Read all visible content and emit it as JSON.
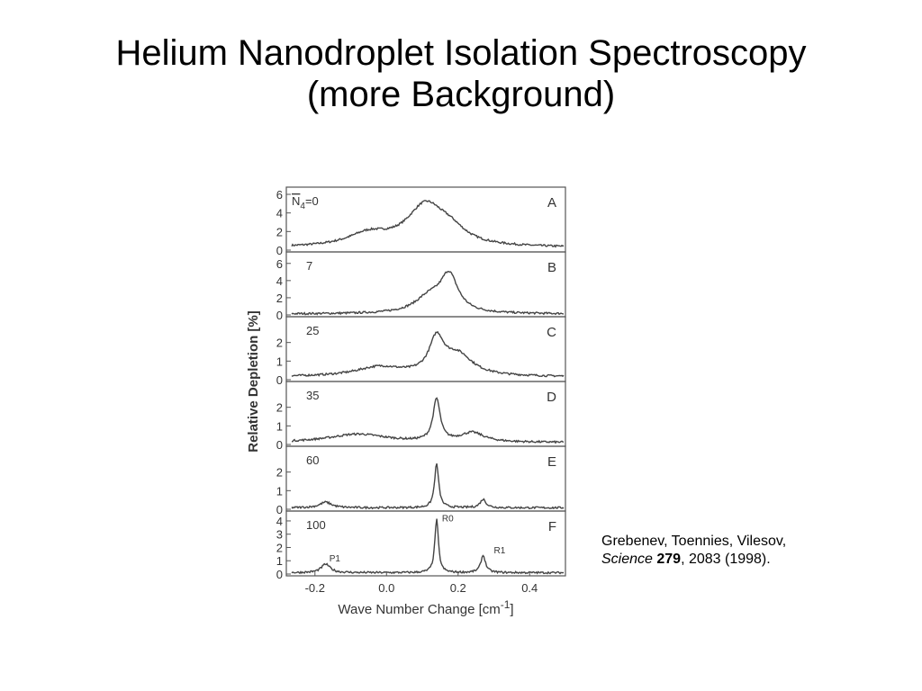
{
  "slide": {
    "title_line1": "Helium Nanodroplet Isolation Spectroscopy",
    "title_line2": "(more Background)"
  },
  "citation": {
    "authors": "Grebenev, Toennies, Vilesov,",
    "journal": "Science",
    "volume": "279",
    "rest": ", 2083 (1998)."
  },
  "chart_data": {
    "type": "line",
    "xlabel": "Wave Number Change [cm",
    "xlabel_exponent": "-1",
    "xlabel_close": "]",
    "ylabel": "Relative Depletion [%]",
    "xlim": [
      -0.28,
      0.5
    ],
    "xticks": [
      -0.2,
      0.0,
      0.2,
      0.4
    ],
    "xtick_labels": [
      "-0.2",
      "0.0",
      "0.2",
      "0.4"
    ],
    "grid": false,
    "panels": [
      {
        "letter": "A",
        "label": "N4=0",
        "n_label": "N",
        "n_sub": "4",
        "n_rest": "=0",
        "ylim": [
          0,
          6
        ],
        "yticks": [
          0,
          2,
          4,
          6
        ],
        "features": [
          [
            -0.05,
            1.3,
            0.07
          ],
          [
            0.11,
            4.4,
            0.065
          ],
          [
            0.18,
            1.2,
            0.05
          ]
        ],
        "base": 0.25
      },
      {
        "letter": "B",
        "label": "7",
        "ylim": [
          0,
          6.5
        ],
        "yticks": [
          0,
          2,
          4,
          6
        ],
        "features": [
          [
            0.12,
            1.8,
            0.05
          ],
          [
            0.175,
            4.2,
            0.03
          ]
        ],
        "base": 0.1
      },
      {
        "letter": "C",
        "label": "25",
        "ylim": [
          0,
          3
        ],
        "yticks": [
          0,
          1,
          2
        ],
        "features": [
          [
            -0.02,
            0.5,
            0.08
          ],
          [
            0.14,
            1.85,
            0.025
          ],
          [
            0.2,
            1.1,
            0.05
          ]
        ],
        "base": 0.15
      },
      {
        "letter": "D",
        "label": "35",
        "ylim": [
          0,
          3
        ],
        "yticks": [
          0,
          1,
          2
        ],
        "features": [
          [
            -0.08,
            0.45,
            0.1
          ],
          [
            0.14,
            2.25,
            0.012
          ],
          [
            0.24,
            0.5,
            0.04
          ]
        ],
        "base": 0.1
      },
      {
        "letter": "E",
        "label": "60",
        "ylim": [
          0,
          3
        ],
        "yticks": [
          0,
          1,
          2
        ],
        "features": [
          [
            -0.17,
            0.3,
            0.02
          ],
          [
            0.14,
            2.35,
            0.007
          ],
          [
            0.27,
            0.45,
            0.01
          ]
        ],
        "base": 0.08
      },
      {
        "letter": "F",
        "label": "100",
        "ylim": [
          0,
          4.2
        ],
        "yticks": [
          0,
          1,
          2,
          3,
          4
        ],
        "features": [
          [
            -0.17,
            0.65,
            0.015
          ],
          [
            0.14,
            4.0,
            0.006
          ],
          [
            0.27,
            1.3,
            0.008
          ]
        ],
        "base": 0.1,
        "annotations": [
          {
            "text": "P1",
            "x": -0.16,
            "y": 0.95
          },
          {
            "text": "R0",
            "x": 0.155,
            "y": 3.95
          },
          {
            "text": "R1",
            "x": 0.3,
            "y": 1.55
          }
        ]
      }
    ]
  }
}
